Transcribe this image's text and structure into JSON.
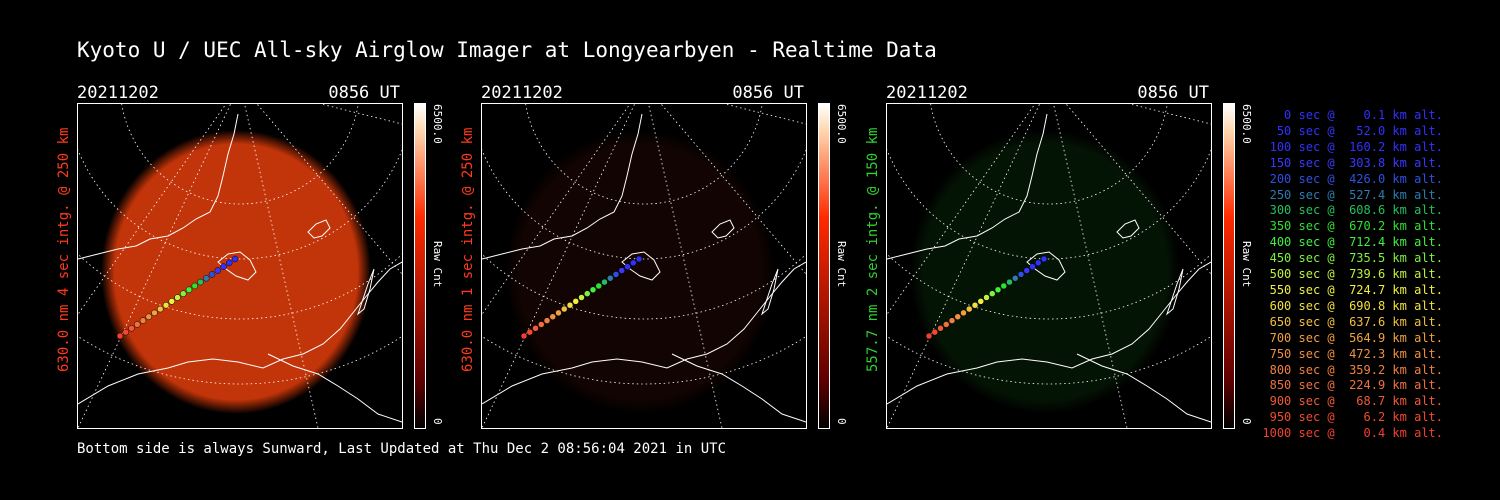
{
  "header": {
    "title": "Kyoto U / UEC All-sky Airglow Imager at Longyearbyen - Realtime Data"
  },
  "footer": {
    "text": "Bottom side is always Sunward, Last Updated at Thu Dec  2 08:56:04 2021 in UTC"
  },
  "panels": [
    {
      "date": "20211202",
      "time": "0856 UT",
      "ylabel": "630.0 nm 4 sec intg. @ 250 km",
      "label_color": "#ff3b1a",
      "cbar_max": "6500.0",
      "cbar_min": "0",
      "cbar_unit": "Raw Cnt",
      "cbar_color": "#ff2a00",
      "glow_color": "#d83a0a",
      "glow_level": 0.9
    },
    {
      "date": "20211202",
      "time": "0856 UT",
      "ylabel": "630.0 nm 1 sec intg. @ 250 km",
      "label_color": "#ff3b1a",
      "cbar_max": "6500.0",
      "cbar_min": "0",
      "cbar_unit": "Raw Cnt",
      "cbar_color": "#ff2a00",
      "glow_color": "#3a0d05",
      "glow_level": 0.3
    },
    {
      "date": "20211202",
      "time": "0856 UT",
      "ylabel": "557.7 nm 2 sec intg. @ 150 km",
      "label_color": "#30d030",
      "cbar_max": "6500.0",
      "cbar_min": "0",
      "cbar_unit": "Raw Cnt",
      "cbar_color": "#ff2a00",
      "glow_color": "#0d3a0d",
      "glow_level": 0.35
    }
  ],
  "legend": [
    {
      "text": "   0 sec @    0.1 km alt.",
      "color": "#3030ff"
    },
    {
      "text": "  50 sec @   52.0 km alt.",
      "color": "#3030ff"
    },
    {
      "text": " 100 sec @  160.2 km alt.",
      "color": "#3030ff"
    },
    {
      "text": " 150 sec @  303.8 km alt.",
      "color": "#3838ff"
    },
    {
      "text": " 200 sec @  426.0 km alt.",
      "color": "#3050e0"
    },
    {
      "text": " 250 sec @  527.4 km alt.",
      "color": "#2c7cb0"
    },
    {
      "text": " 300 sec @  608.6 km alt.",
      "color": "#22c060"
    },
    {
      "text": " 350 sec @  670.2 km alt.",
      "color": "#30e030"
    },
    {
      "text": " 400 sec @  712.4 km alt.",
      "color": "#40f040"
    },
    {
      "text": " 450 sec @  735.5 km alt.",
      "color": "#80f040"
    },
    {
      "text": " 500 sec @  739.6 km alt.",
      "color": "#c0f040"
    },
    {
      "text": " 550 sec @  724.7 km alt.",
      "color": "#f0f040"
    },
    {
      "text": " 600 sec @  690.8 km alt.",
      "color": "#f0e040"
    },
    {
      "text": " 650 sec @  637.6 km alt.",
      "color": "#f0c040"
    },
    {
      "text": " 700 sec @  564.9 km alt.",
      "color": "#f0a040"
    },
    {
      "text": " 750 sec @  472.3 km alt.",
      "color": "#f09040"
    },
    {
      "text": " 800 sec @  359.2 km alt.",
      "color": "#f08040"
    },
    {
      "text": " 850 sec @  224.9 km alt.",
      "color": "#f07040"
    },
    {
      "text": " 900 sec @   68.7 km alt.",
      "color": "#f05a3a"
    },
    {
      "text": " 950 sec @    6.2 km alt.",
      "color": "#f04a30"
    },
    {
      "text": "1000 sec @    0.4 km alt.",
      "color": "#f04030"
    }
  ]
}
